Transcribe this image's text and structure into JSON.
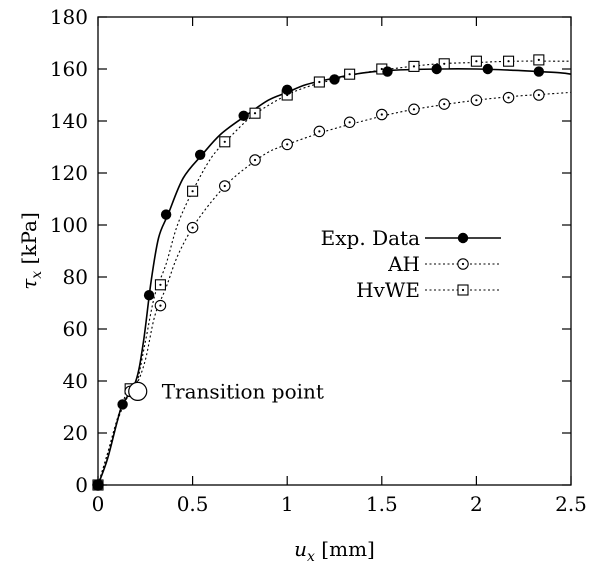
{
  "chart_data": {
    "type": "line",
    "xlabel_var": "u",
    "xlabel_sub": "x",
    "xlabel_unit": " [mm]",
    "ylabel_var": "τ",
    "ylabel_sub": "x",
    "ylabel_unit": " [kPa]",
    "xlim": [
      0,
      2.5
    ],
    "ylim": [
      0,
      180
    ],
    "xticks": [
      0,
      0.5,
      1,
      1.5,
      2,
      2.5
    ],
    "xtick_labels": [
      "0",
      "0.5",
      "1",
      "1.5",
      "2",
      "2.5"
    ],
    "yticks": [
      0,
      20,
      40,
      60,
      80,
      100,
      120,
      140,
      160,
      180
    ],
    "ytick_labels": [
      "0",
      "20",
      "40",
      "60",
      "80",
      "100",
      "120",
      "140",
      "160",
      "180"
    ],
    "grid": false,
    "legend_position": "middle-right",
    "series": [
      {
        "name": "Exp. Data",
        "line": "solid",
        "marker": "filled-circle",
        "curve": [
          [
            0,
            0
          ],
          [
            0.05,
            10
          ],
          [
            0.1,
            24
          ],
          [
            0.13,
            31
          ],
          [
            0.2,
            40
          ],
          [
            0.24,
            55
          ],
          [
            0.28,
            78
          ],
          [
            0.32,
            95
          ],
          [
            0.37,
            104
          ],
          [
            0.45,
            118
          ],
          [
            0.55,
            127
          ],
          [
            0.65,
            135
          ],
          [
            0.78,
            142
          ],
          [
            0.9,
            148
          ],
          [
            1.0,
            151
          ],
          [
            1.1,
            154
          ],
          [
            1.25,
            156.5
          ],
          [
            1.4,
            158.5
          ],
          [
            1.55,
            159.5
          ],
          [
            1.8,
            160
          ],
          [
            2.0,
            160
          ],
          [
            2.2,
            159.5
          ],
          [
            2.33,
            159
          ],
          [
            2.45,
            158.5
          ],
          [
            2.5,
            158
          ]
        ],
        "points": [
          [
            0,
            0
          ],
          [
            0.13,
            31
          ],
          [
            0.27,
            73
          ],
          [
            0.36,
            104
          ],
          [
            0.54,
            127
          ],
          [
            0.77,
            142
          ],
          [
            1.0,
            152
          ],
          [
            1.25,
            156
          ],
          [
            1.53,
            159
          ],
          [
            1.79,
            160
          ],
          [
            2.06,
            160
          ],
          [
            2.33,
            159
          ]
        ]
      },
      {
        "name": "AH",
        "line": "dotted",
        "marker": "open-circle",
        "curve": [
          [
            0,
            0
          ],
          [
            0.05,
            12
          ],
          [
            0.1,
            24
          ],
          [
            0.15,
            33
          ],
          [
            0.2,
            38
          ],
          [
            0.25,
            48
          ],
          [
            0.3,
            65
          ],
          [
            0.36,
            76
          ],
          [
            0.42,
            88
          ],
          [
            0.5,
            99
          ],
          [
            0.6,
            109
          ],
          [
            0.7,
            117
          ],
          [
            0.8,
            123
          ],
          [
            0.9,
            128
          ],
          [
            1.0,
            131
          ],
          [
            1.2,
            136
          ],
          [
            1.4,
            140
          ],
          [
            1.6,
            143.5
          ],
          [
            1.8,
            146
          ],
          [
            2.0,
            148
          ],
          [
            2.2,
            149.5
          ],
          [
            2.4,
            150.5
          ],
          [
            2.5,
            151
          ]
        ],
        "points": [
          [
            0,
            0
          ],
          [
            0.17,
            36
          ],
          [
            0.33,
            69
          ],
          [
            0.5,
            99
          ],
          [
            0.67,
            115
          ],
          [
            0.83,
            125
          ],
          [
            1.0,
            131
          ],
          [
            1.17,
            136
          ],
          [
            1.33,
            139.5
          ],
          [
            1.5,
            142.5
          ],
          [
            1.67,
            144.5
          ],
          [
            1.83,
            146.5
          ],
          [
            2.0,
            148
          ],
          [
            2.17,
            149
          ],
          [
            2.33,
            150
          ]
        ]
      },
      {
        "name": "HvWE",
        "line": "dotted",
        "marker": "open-square",
        "curve": [
          [
            0,
            0
          ],
          [
            0.05,
            12
          ],
          [
            0.1,
            25
          ],
          [
            0.15,
            35
          ],
          [
            0.2,
            38
          ],
          [
            0.25,
            55
          ],
          [
            0.3,
            73
          ],
          [
            0.36,
            85
          ],
          [
            0.42,
            100
          ],
          [
            0.5,
            113
          ],
          [
            0.6,
            126
          ],
          [
            0.7,
            134
          ],
          [
            0.8,
            141
          ],
          [
            0.9,
            146
          ],
          [
            1.0,
            150
          ],
          [
            1.1,
            153
          ],
          [
            1.25,
            156
          ],
          [
            1.4,
            158.5
          ],
          [
            1.6,
            160.5
          ],
          [
            1.8,
            162
          ],
          [
            2.0,
            162.5
          ],
          [
            2.2,
            163
          ],
          [
            2.5,
            163
          ]
        ],
        "points": [
          [
            0,
            0
          ],
          [
            0.17,
            37
          ],
          [
            0.33,
            77
          ],
          [
            0.5,
            113
          ],
          [
            0.67,
            132
          ],
          [
            0.83,
            143
          ],
          [
            1.0,
            150
          ],
          [
            1.17,
            155
          ],
          [
            1.33,
            158
          ],
          [
            1.5,
            160
          ],
          [
            1.67,
            161
          ],
          [
            1.83,
            162
          ],
          [
            2.0,
            163
          ],
          [
            2.17,
            163
          ],
          [
            2.33,
            163.5
          ]
        ]
      }
    ],
    "annotations": [
      {
        "text": "Transition point",
        "x": 0.21,
        "y": 36
      }
    ]
  }
}
